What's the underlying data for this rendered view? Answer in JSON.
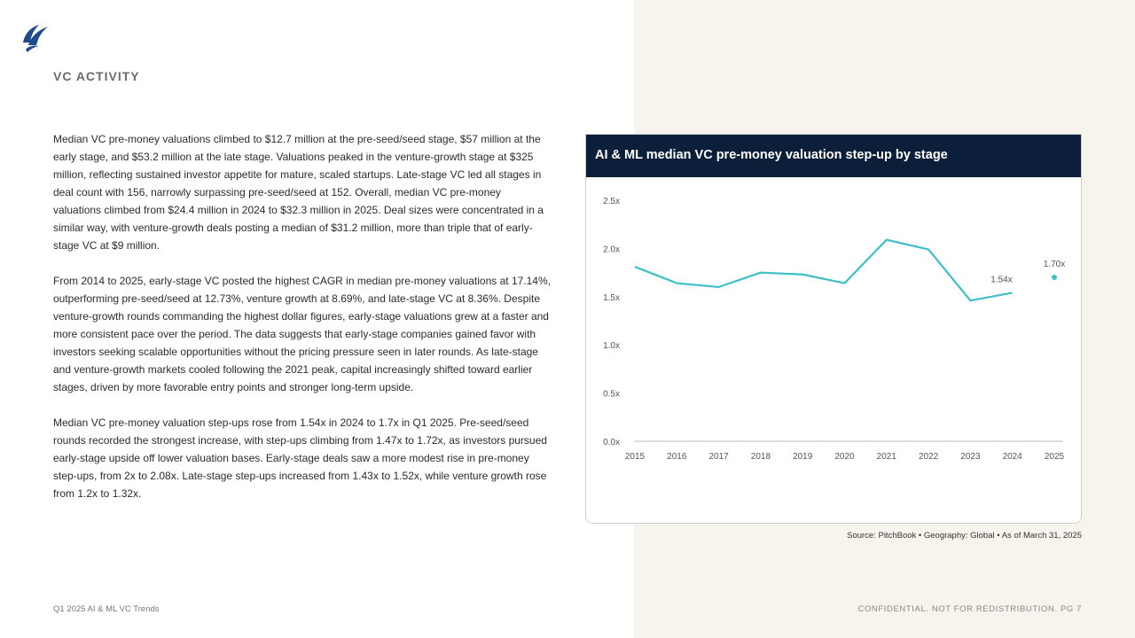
{
  "section_title": "VC ACTIVITY",
  "paragraphs": [
    "Median VC pre-money valuations climbed to $12.7 million at the pre-seed/seed stage, $57 million at the early stage, and $53.2 million at the late stage. Valuations peaked in the venture-growth stage at $325 million, reflecting sustained investor appetite for mature, scaled startups. Late-stage VC led all stages in deal count with 156, narrowly surpassing pre-seed/seed at 152. Overall, median VC pre-money valuations climbed from $24.4 million in 2024 to $32.3 million in 2025. Deal sizes were concentrated in a similar way, with venture-growth deals posting a median of $31.2 million, more than triple that of early-stage VC at $9 million.",
    "From 2014 to 2025, early-stage VC posted the highest CAGR in median pre-money valuations at 17.14%, outperforming pre-seed/seed at 12.73%, venture growth at 8.69%, and late-stage VC at 8.36%. Despite venture-growth rounds commanding the highest dollar figures, early-stage valuations grew at a faster and more consistent pace over the period. The data suggests that early-stage companies gained favor with investors seeking scalable opportunities without the pricing pressure seen in later rounds. As late-stage and venture-growth markets cooled following the 2021 peak, capital increasingly shifted toward earlier stages, driven by more favorable entry points and stronger long-term upside.",
    "Median VC pre-money valuation step-ups rose from 1.54x in 2024 to 1.7x in Q1 2025. Pre-seed/seed rounds recorded the strongest increase, with step-ups climbing from 1.47x to 1.72x, as investors pursued early-stage upside off lower valuation bases. Early-stage deals saw a more modest rise in pre-money step-ups, from 2x to 2.08x. Late-stage step-ups increased from 1.43x to 1.52x, while venture growth rose from 1.2x to 1.32x."
  ],
  "chart_data": {
    "type": "line",
    "title": "AI & ML median VC pre-money valuation step-up by stage",
    "x": [
      "2015",
      "2016",
      "2017",
      "2018",
      "2019",
      "2020",
      "2021",
      "2022",
      "2023",
      "2024",
      "2025"
    ],
    "values": [
      1.81,
      1.64,
      1.6,
      1.75,
      1.73,
      1.64,
      2.09,
      1.99,
      1.46,
      1.54,
      1.7
    ],
    "data_labels": {
      "2024": "1.54x",
      "2025": "1.70x"
    },
    "y_ticks": [
      "0.0x",
      "0.5x",
      "1.0x",
      "1.5x",
      "2.0x",
      "2.5x"
    ],
    "ylim": [
      0,
      2.5
    ],
    "grid": false,
    "line_color": "#3dbfc6",
    "note": "2025 shown as separate point"
  },
  "source": "Source: PitchBook  •  Geography: Global  •  As of March 31, 2025",
  "footer_left": "Q1 2025 AI & ML VC Trends",
  "footer_right": "CONFIDENTIAL. NOT FOR REDISTRIBUTION.  PG 7",
  "colors": {
    "header": "#0c1f3a",
    "accent": "#3dbfc6",
    "logo": "#1f4a8c"
  }
}
